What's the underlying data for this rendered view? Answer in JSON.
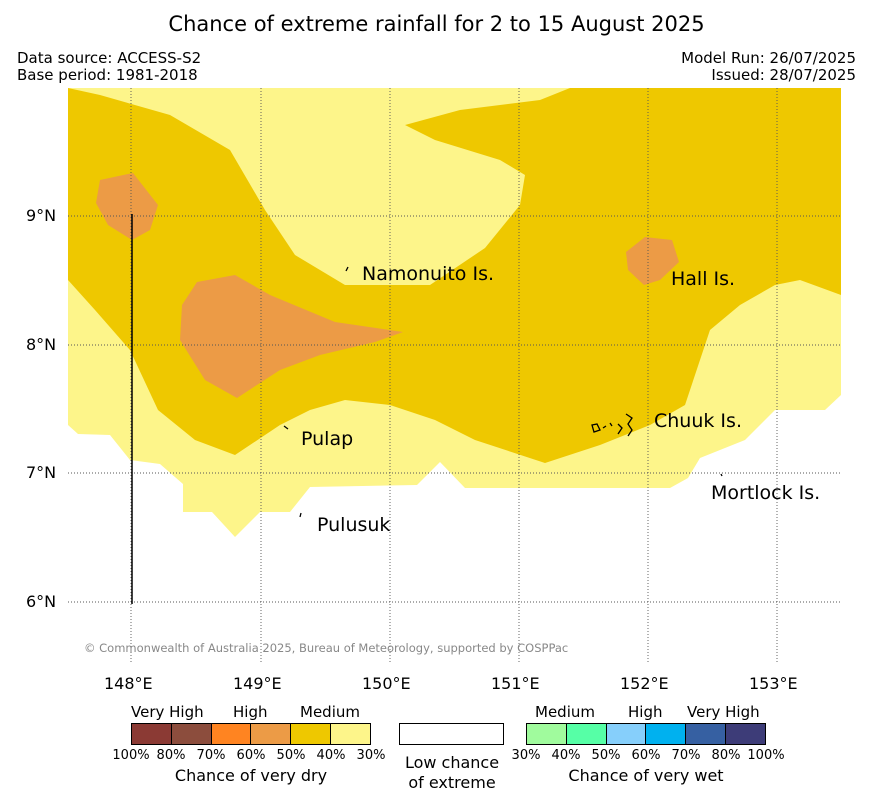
{
  "title": "Chance of extreme rainfall for 2 to 15 August 2025",
  "meta": {
    "data_source": "Data source: ACCESS-S2",
    "base_period": "Base period: 1981-2018",
    "model_run": "Model Run: 26/07/2025",
    "issued": "Issued: 28/07/2025"
  },
  "axes": {
    "lat_labels": [
      "9°N",
      "8°N",
      "7°N",
      "6°N"
    ],
    "lon_labels": [
      "148°E",
      "149°E",
      "150°E",
      "151°E",
      "152°E",
      "153°E"
    ]
  },
  "places": [
    "Namonuito Is.",
    "Hall Is.",
    "Pulap",
    "Chuuk Is.",
    "Mortlock Is.",
    "Pulusuk"
  ],
  "copyright": "© Commonwealth of Australia 2025, Bureau of Meteorology, supported by COSPPac",
  "colors": {
    "dry_100_80": "#8b3a34",
    "dry_80_70": "#8c4d3d",
    "dry_70_60": "#ff8421",
    "dry_60_50": "#ec9b46",
    "dry_50_40": "#eec800",
    "dry_40_30": "#fdf58a",
    "wet_30_40": "#a0fb9d",
    "wet_40_50": "#56ffa6",
    "wet_50_60": "#86cffb",
    "wet_60_70": "#00b1ef",
    "wet_70_80": "#3660a2",
    "wet_80_100": "#3d3c78"
  },
  "legend": {
    "dry": {
      "levels": [
        "Very High",
        "High",
        "Medium"
      ],
      "ticks": [
        "100%",
        "80%",
        "70%",
        "60%",
        "50%",
        "40%",
        "30%"
      ],
      "caption": "Chance of very dry"
    },
    "neutral": {
      "caption_line1": "Low chance",
      "caption_line2": "of extreme"
    },
    "wet": {
      "levels": [
        "Medium",
        "High",
        "Very High"
      ],
      "ticks": [
        "30%",
        "40%",
        "50%",
        "60%",
        "70%",
        "80%",
        "100%"
      ],
      "caption": "Chance of very wet"
    }
  }
}
